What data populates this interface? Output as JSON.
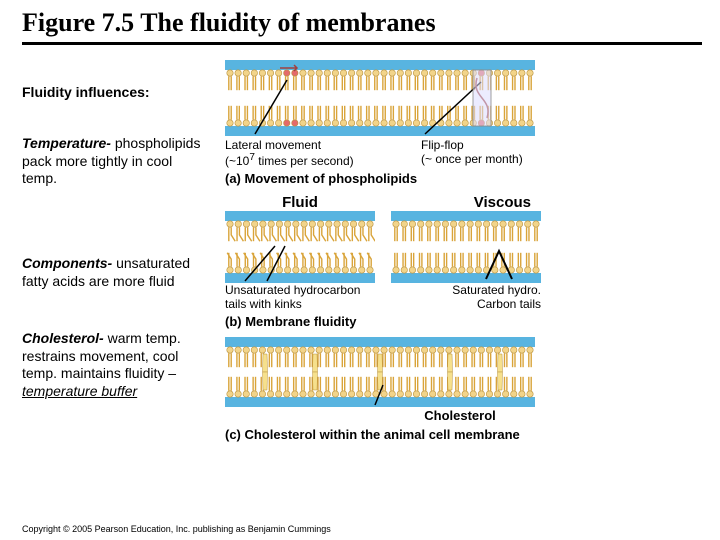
{
  "title": "Figure 7.5 The fluidity of membranes",
  "left": {
    "heading": "Fluidity influences:",
    "temperature_title": "Temperature-",
    "temperature_body": "phospholipids pack more tightly in cool temp.",
    "components_title": "Components-",
    "components_body": "unsaturated fatty acids are more fluid",
    "cholesterol_title": "Cholesterol-",
    "cholesterol_body1": "warm temp. restrains movement, cool temp. maintains fluidity – ",
    "cholesterol_body2": "temperature buffer"
  },
  "panels": {
    "a": {
      "lateral_label": "Lateral movement",
      "lateral_sub": "(~10",
      "lateral_exp": "7",
      "lateral_sub2": " times per second)",
      "flipflop_label": "Flip-flop",
      "flipflop_sub": "(~ once per month)",
      "caption": "(a) Movement of phospholipids"
    },
    "b": {
      "fluid": "Fluid",
      "viscous": "Viscous",
      "unsat_label1": "Unsaturated hydrocarbon",
      "unsat_label2": "tails with kinks",
      "sat_label1": "Saturated hydro.",
      "sat_label2": "Carbon tails",
      "caption": "(b) Membrane fluidity"
    },
    "c": {
      "chol_label": "Cholesterol",
      "caption": "(c) Cholesterol within the animal cell membrane"
    }
  },
  "copyright": "Copyright © 2005 Pearson Education, Inc. publishing as Benjamin Cummings",
  "colors": {
    "water": "#58b4e0",
    "head": "#f2d48a",
    "head_stroke": "#b8923f",
    "tail": "#d9a43a",
    "highlight_head": "#e46a6a",
    "chol": "#f6e08c",
    "pointer": "#000000"
  },
  "style": {
    "title_fontsize": 26,
    "body_fontsize": 14,
    "label_fontsize": 12,
    "caption_fontsize": 13
  }
}
